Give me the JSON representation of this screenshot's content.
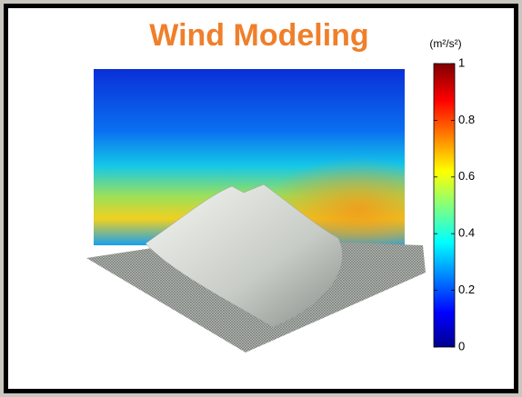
{
  "title": "Wind Modeling",
  "colorbar": {
    "label": "(m²/s²)",
    "lim": [
      0,
      1
    ],
    "ticks": [
      0,
      0.2,
      0.4,
      0.6,
      0.8,
      1
    ]
  }
}
